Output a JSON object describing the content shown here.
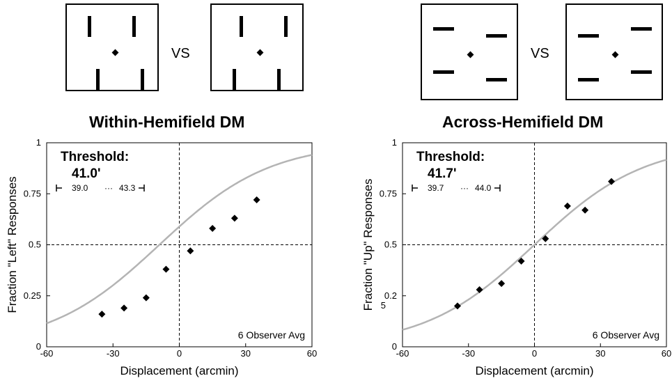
{
  "stimuli": {
    "vs_label": "VS",
    "left_pair": {
      "orientation": "vertical"
    },
    "right_pair": {
      "orientation": "horizontal"
    }
  },
  "colors": {
    "curve": "#b4b4b4",
    "marker": "#000000",
    "axis": "#000000"
  },
  "chart_data": [
    {
      "type": "scatter",
      "title": "Within-Hemifield DM",
      "xlabel": "Displacement (arcmin)",
      "ylabel": "Fraction \"Left\" Responses",
      "xlim": [
        -60,
        60
      ],
      "ylim": [
        0,
        1
      ],
      "xticks": [
        "-60",
        "-30",
        "0",
        "30",
        "60"
      ],
      "yticks": [
        "0",
        "0.25",
        "0.5",
        "0.75",
        "1"
      ],
      "threshold": {
        "label": "Threshold:",
        "value": "41.0'",
        "ci_low": "39.0",
        "ci_high": "43.3"
      },
      "note": "6 Observer Avg",
      "series": [
        {
          "x": [
            -35,
            -25,
            -15,
            -6,
            5,
            15,
            25,
            35
          ],
          "y": [
            0.16,
            0.19,
            0.24,
            0.38,
            0.47,
            0.58,
            0.63,
            0.72
          ]
        }
      ],
      "fit": {
        "pse": -9,
        "slope": 0.04
      },
      "reference_lines": {
        "x": 0,
        "y": 0.5
      }
    },
    {
      "type": "scatter",
      "title": "Across-Hemifield DM",
      "xlabel": "Displacement (arcmin)",
      "ylabel": "Fraction \"Up\" Responses",
      "xlim": [
        -60,
        60
      ],
      "ylim": [
        0,
        1
      ],
      "xticks": [
        "-60",
        "-30",
        "0",
        "30",
        "60"
      ],
      "yticks": [
        "0",
        "0.2\n5",
        "0.5",
        "0.75",
        "1"
      ],
      "threshold": {
        "label": "Threshold:",
        "value": "41.7'",
        "ci_low": "39.7",
        "ci_high": "44.0"
      },
      "note": "6 Observer Avg",
      "series": [
        {
          "x": [
            -35,
            -25,
            -15,
            -6,
            5,
            15,
            23,
            35
          ],
          "y": [
            0.2,
            0.28,
            0.31,
            0.42,
            0.53,
            0.69,
            0.67,
            0.81
          ]
        }
      ],
      "fit": {
        "pse": 0,
        "slope": 0.04
      },
      "reference_lines": {
        "x": 0,
        "y": 0.5
      }
    }
  ]
}
